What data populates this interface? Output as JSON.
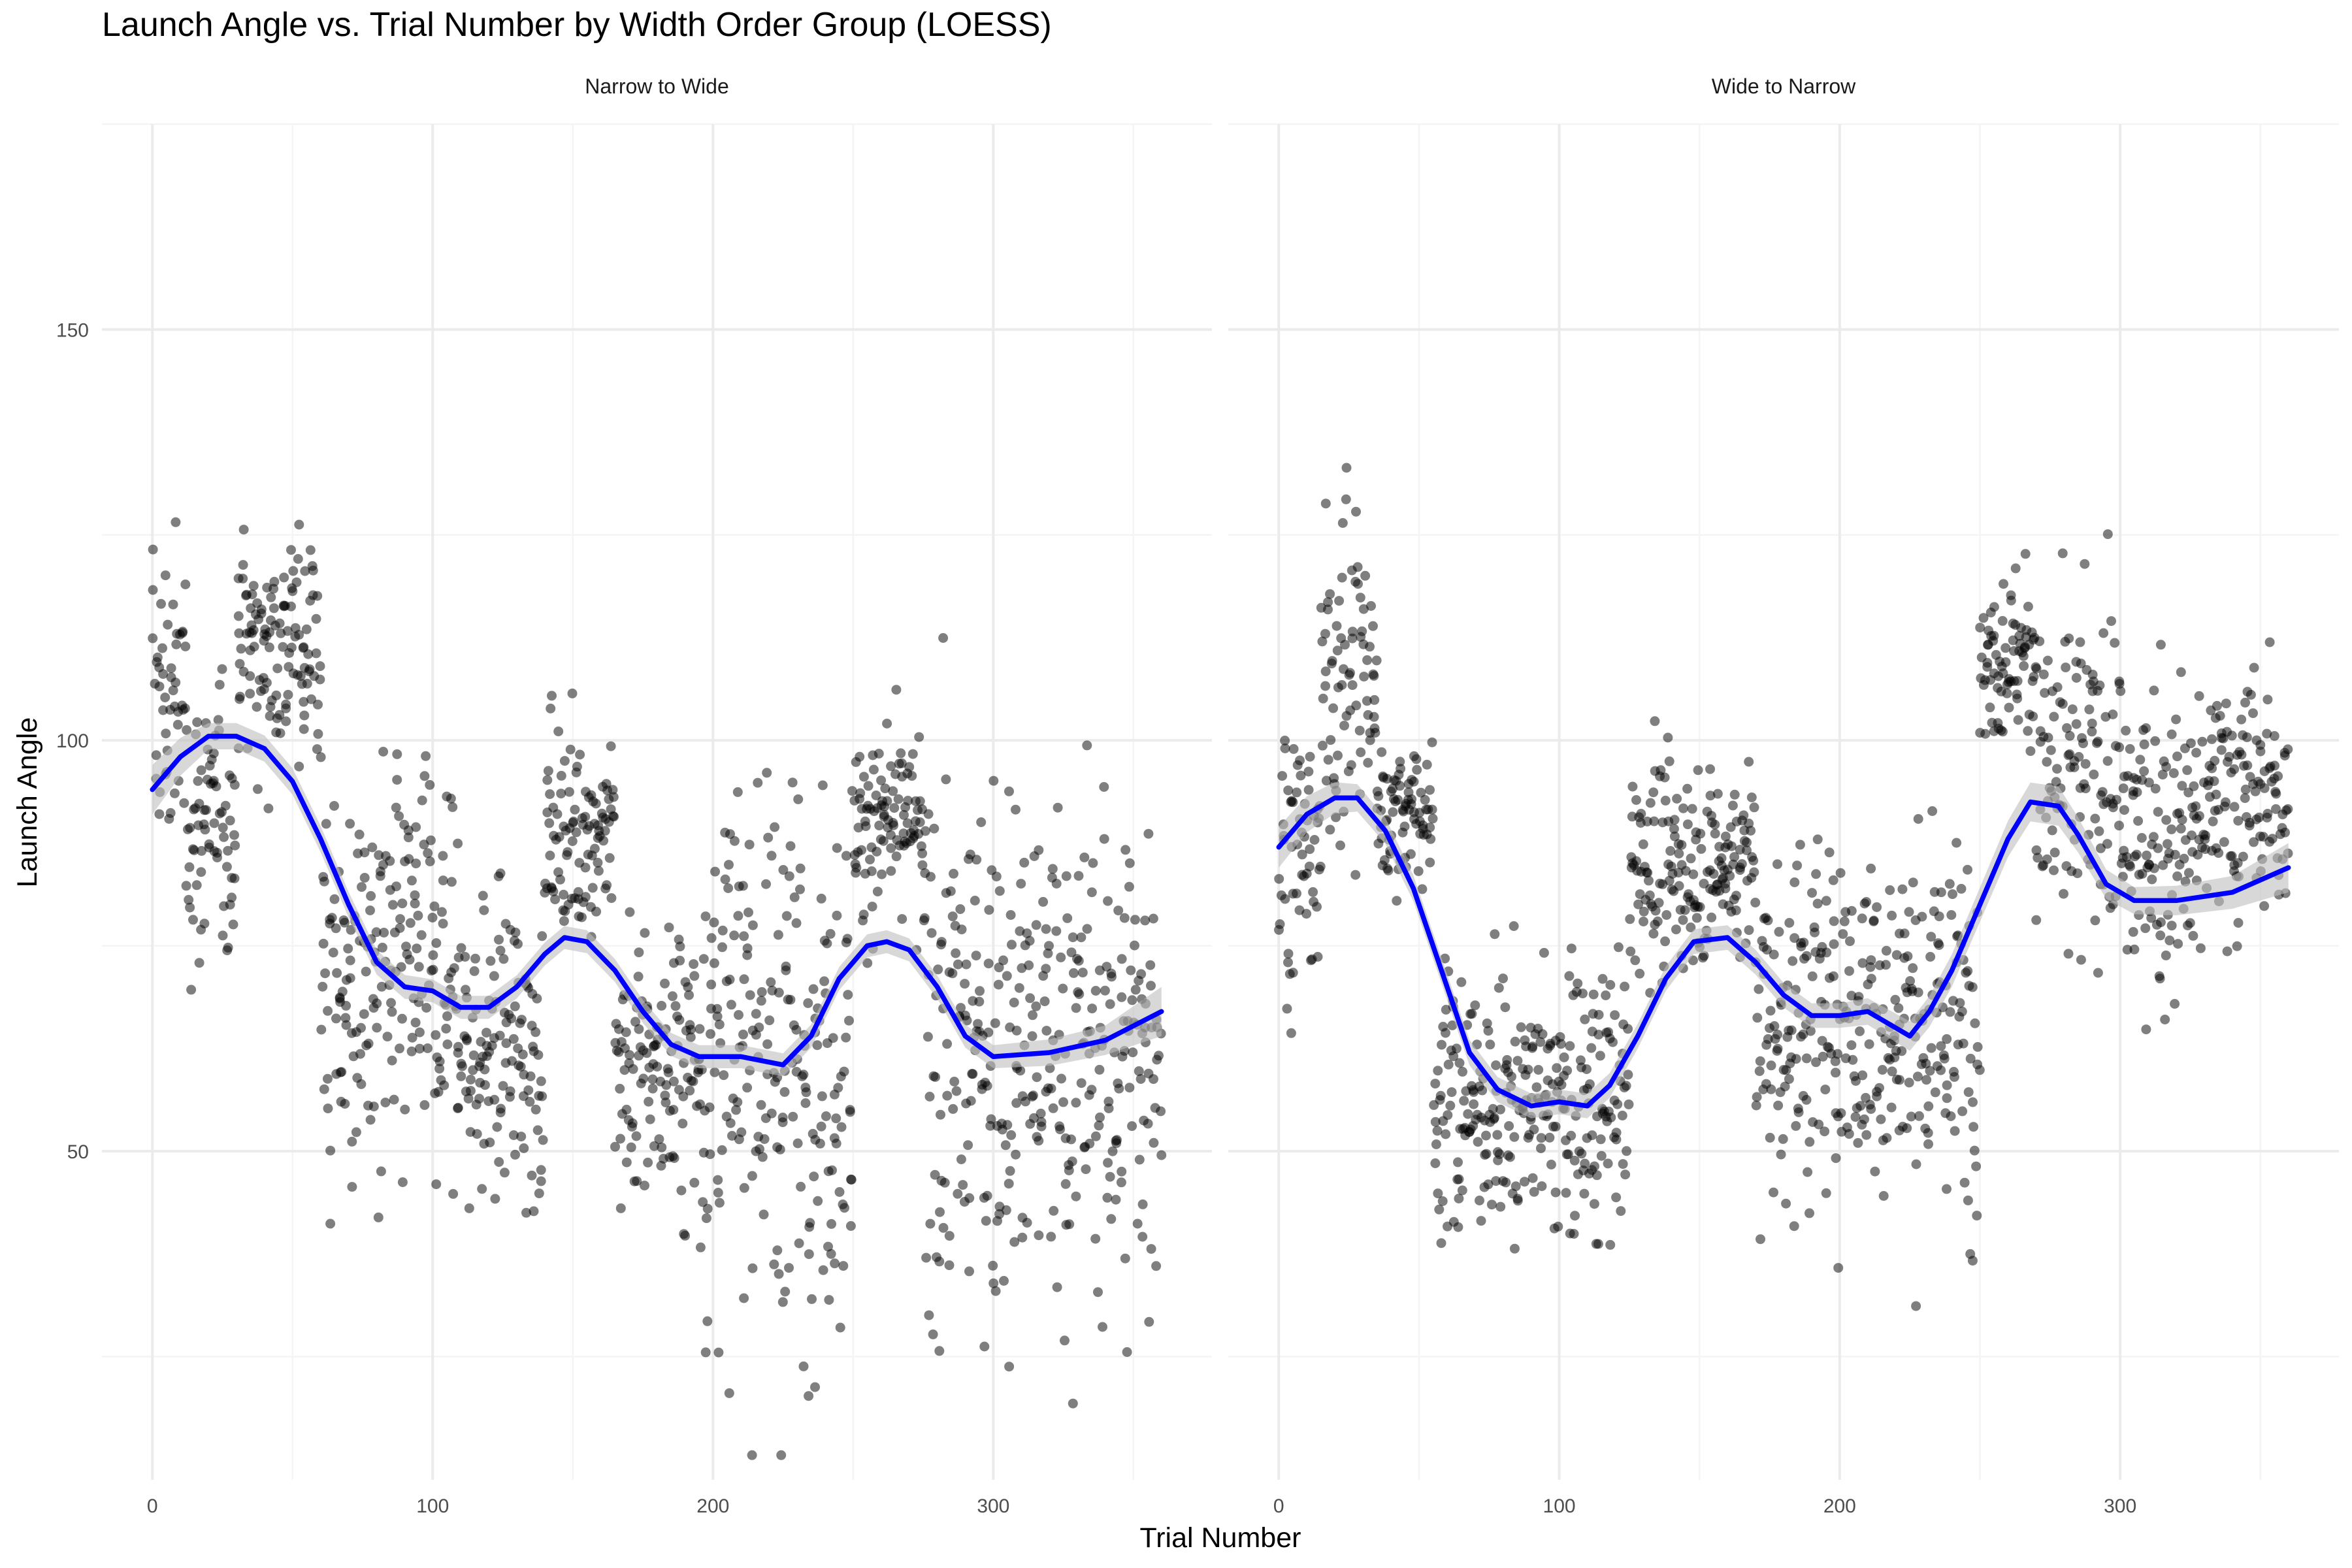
{
  "title": "Launch Angle vs. Trial Number by Width Order Group (LOESS)",
  "chart_data": {
    "type": "scatter",
    "title": "Launch Angle vs. Trial Number by Width Order Group (LOESS)",
    "xlabel": "Trial Number",
    "ylabel": "Launch Angle",
    "xlim": [
      -18,
      378
    ],
    "ylim": [
      10,
      175
    ],
    "x_ticks": [
      0,
      100,
      200,
      300
    ],
    "y_ticks": [
      50,
      100,
      150
    ],
    "grid": true,
    "legend": "none",
    "point_color": "#000000",
    "point_opacity": 0.5,
    "smooth_color": "#0000FF",
    "band_color": "#BEBEBE",
    "panels": [
      {
        "label": "Narrow to Wide",
        "phases": [
          [
            0,
            12,
            105,
            10
          ],
          [
            12,
            30,
            90,
            8
          ],
          [
            30,
            60,
            112,
            7
          ],
          [
            60,
            110,
            70,
            13
          ],
          [
            110,
            140,
            62,
            9
          ],
          [
            140,
            165,
            89,
            6
          ],
          [
            165,
            195,
            60,
            9
          ],
          [
            195,
            250,
            62,
            17
          ],
          [
            250,
            275,
            89,
            6
          ],
          [
            275,
            360,
            62,
            16
          ]
        ],
        "loess": [
          [
            0,
            94
          ],
          [
            10,
            98
          ],
          [
            20,
            100.5
          ],
          [
            30,
            100.5
          ],
          [
            40,
            99
          ],
          [
            50,
            95
          ],
          [
            60,
            88
          ],
          [
            70,
            80
          ],
          [
            80,
            73
          ],
          [
            90,
            70
          ],
          [
            100,
            69.5
          ],
          [
            110,
            67.5
          ],
          [
            120,
            67.5
          ],
          [
            130,
            70
          ],
          [
            140,
            74
          ],
          [
            147,
            76
          ],
          [
            155,
            75.5
          ],
          [
            165,
            72
          ],
          [
            175,
            67
          ],
          [
            185,
            63
          ],
          [
            195,
            61.5
          ],
          [
            210,
            61.5
          ],
          [
            225,
            60.5
          ],
          [
            235,
            64
          ],
          [
            245,
            71
          ],
          [
            255,
            75
          ],
          [
            262,
            75.5
          ],
          [
            270,
            74.5
          ],
          [
            280,
            70
          ],
          [
            290,
            64
          ],
          [
            300,
            61.5
          ],
          [
            320,
            62
          ],
          [
            340,
            63.5
          ],
          [
            360,
            67
          ]
        ],
        "band_half_width": [
          [
            0,
            3
          ],
          [
            20,
            1.6
          ],
          [
            60,
            1.6
          ],
          [
            100,
            1.4
          ],
          [
            200,
            1.4
          ],
          [
            300,
            1.4
          ],
          [
            340,
            1.8
          ],
          [
            360,
            3
          ]
        ]
      },
      {
        "label": "Wide to Narrow",
        "phases": [
          [
            0,
            15,
            86,
            8
          ],
          [
            15,
            35,
            108,
            10
          ],
          [
            35,
            55,
            91,
            4
          ],
          [
            55,
            125,
            56,
            8
          ],
          [
            125,
            170,
            85,
            6
          ],
          [
            170,
            250,
            66,
            11
          ],
          [
            250,
            270,
            110,
            5
          ],
          [
            270,
            300,
            95,
            10
          ],
          [
            300,
            330,
            88,
            9
          ],
          [
            330,
            360,
            93,
            8
          ]
        ],
        "loess": [
          [
            0,
            87
          ],
          [
            10,
            91
          ],
          [
            20,
            93
          ],
          [
            28,
            93
          ],
          [
            38,
            89
          ],
          [
            48,
            82
          ],
          [
            58,
            72
          ],
          [
            68,
            62
          ],
          [
            78,
            57.5
          ],
          [
            90,
            55.5
          ],
          [
            100,
            56
          ],
          [
            110,
            55.5
          ],
          [
            118,
            58
          ],
          [
            128,
            64
          ],
          [
            138,
            71
          ],
          [
            148,
            75.5
          ],
          [
            160,
            76
          ],
          [
            170,
            73
          ],
          [
            180,
            69
          ],
          [
            190,
            66.5
          ],
          [
            200,
            66.5
          ],
          [
            210,
            67
          ],
          [
            220,
            65
          ],
          [
            225,
            64
          ],
          [
            232,
            67
          ],
          [
            240,
            72
          ],
          [
            250,
            80
          ],
          [
            260,
            88
          ],
          [
            268,
            92.5
          ],
          [
            278,
            92
          ],
          [
            285,
            88.5
          ],
          [
            295,
            82.5
          ],
          [
            305,
            80.5
          ],
          [
            320,
            80.5
          ],
          [
            340,
            81.5
          ],
          [
            360,
            84.5
          ]
        ],
        "band_half_width": [
          [
            0,
            2.5
          ],
          [
            30,
            1.6
          ],
          [
            100,
            1.5
          ],
          [
            200,
            1.5
          ],
          [
            260,
            2.2
          ],
          [
            275,
            2.5
          ],
          [
            300,
            1.6
          ],
          [
            340,
            2
          ],
          [
            360,
            3
          ]
        ]
      }
    ]
  }
}
